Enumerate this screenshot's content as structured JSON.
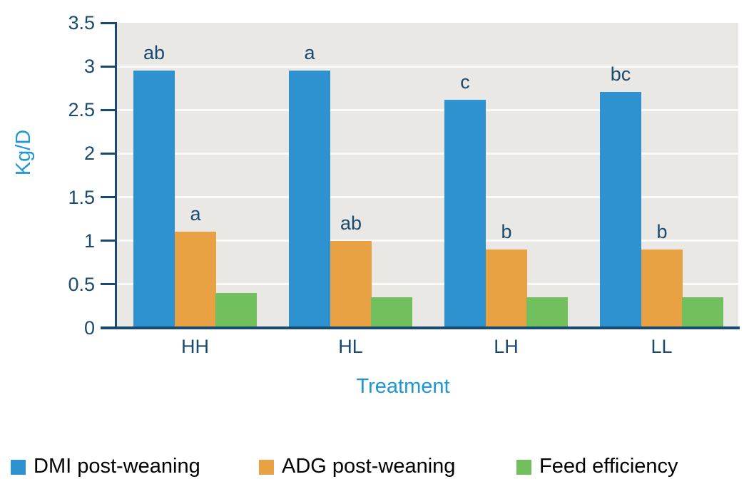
{
  "chart_data": {
    "type": "bar",
    "title": "",
    "categories": [
      "HH",
      "HL",
      "LH",
      "LL"
    ],
    "series": [
      {
        "name": "DMI post-weaning",
        "color": "#2e92d0",
        "values": [
          2.95,
          2.95,
          2.62,
          2.71
        ],
        "sig_letters": [
          "ab",
          "a",
          "c",
          "bc"
        ]
      },
      {
        "name": "ADG post-weaning",
        "color": "#e9a243",
        "values": [
          1.1,
          1.0,
          0.9,
          0.9
        ],
        "sig_letters": [
          "a",
          "ab",
          "b",
          "b"
        ]
      },
      {
        "name": "Feed efficiency",
        "color": "#72bf5e",
        "values": [
          0.4,
          0.35,
          0.35,
          0.35
        ],
        "sig_letters": [
          "",
          "",
          "",
          ""
        ]
      }
    ],
    "xlabel": "Treatment",
    "ylabel": "Kg/D",
    "ylim": [
      0,
      3.5
    ],
    "ytick_step": 0.5,
    "ytick_labels": [
      "0",
      "0.5",
      "1",
      "1.5",
      "2",
      "2.5",
      "3",
      "3.5"
    ],
    "grid": true,
    "legend_position": "bottom",
    "colors": {
      "axis_text": "#1b4a70",
      "axis_line": "#1b4a70",
      "label_blue": "#2196d4",
      "plot_background": "#e9e8e5",
      "gridline": "#fafaf8",
      "legend_text": "#000000"
    }
  }
}
